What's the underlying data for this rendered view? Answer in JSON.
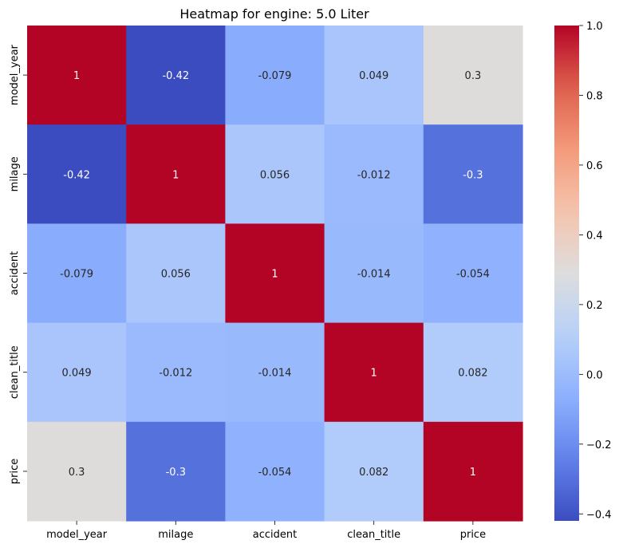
{
  "chart_data": {
    "type": "heatmap",
    "title": "Heatmap for engine: 5.0 Liter",
    "xlabel": "",
    "ylabel": "",
    "x_categories": [
      "model_year",
      "milage",
      "accident",
      "clean_title",
      "price"
    ],
    "y_categories": [
      "model_year",
      "milage",
      "accident",
      "clean_title",
      "price"
    ],
    "values": [
      [
        1,
        -0.42,
        -0.079,
        0.049,
        0.3
      ],
      [
        -0.42,
        1,
        0.056,
        -0.012,
        -0.3
      ],
      [
        -0.079,
        0.056,
        1,
        -0.014,
        -0.054
      ],
      [
        0.049,
        -0.012,
        -0.014,
        1,
        0.082
      ],
      [
        0.3,
        -0.3,
        -0.054,
        0.082,
        1
      ]
    ],
    "annotations": [
      [
        "1",
        "-0.42",
        "-0.079",
        "0.049",
        "0.3"
      ],
      [
        "-0.42",
        "1",
        "0.056",
        "-0.012",
        "-0.3"
      ],
      [
        "-0.079",
        "0.056",
        "1",
        "-0.014",
        "-0.054"
      ],
      [
        "0.049",
        "-0.012",
        "-0.014",
        "1",
        "0.082"
      ],
      [
        "0.3",
        "-0.3",
        "-0.054",
        "0.082",
        "1"
      ]
    ],
    "colormap": "coolwarm",
    "vmin": -0.42,
    "vmax": 1.0,
    "colorbar": {
      "ticks": [
        -0.4,
        -0.2,
        0.0,
        0.2,
        0.4,
        0.6,
        0.8,
        1.0
      ],
      "tick_labels": [
        "−0.4",
        "−0.2",
        "0.0",
        "0.2",
        "0.4",
        "0.6",
        "0.8",
        "1.0"
      ]
    },
    "grid": false
  }
}
